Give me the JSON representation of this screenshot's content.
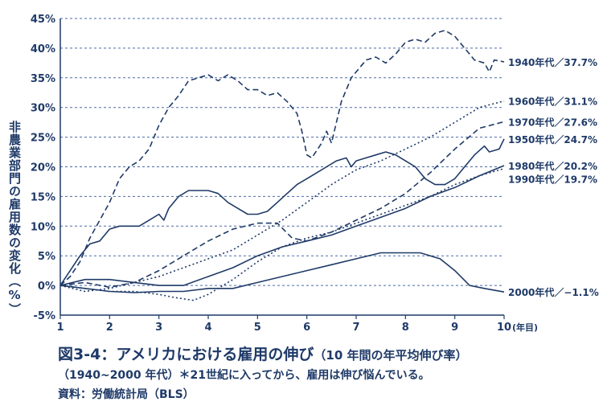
{
  "chart_data": {
    "type": "line",
    "ylabel": "非農業部門の雇用数の変化（%）",
    "xlabel_unit": "(年目)",
    "xlim": [
      1,
      10
    ],
    "ylim": [
      -5,
      45
    ],
    "x_ticks": [
      "1",
      "2",
      "3",
      "4",
      "5",
      "6",
      "7",
      "8",
      "9",
      "10"
    ],
    "y_ticks": [
      "-5%",
      "0%",
      "5%",
      "10%",
      "15%",
      "20%",
      "25%",
      "30%",
      "35%",
      "40%",
      "45%"
    ],
    "grid": "horizontal dashed",
    "colors": {
      "line": "#1f3a68",
      "grid": "#4a6aa8",
      "text": "#1f3a68"
    },
    "series": [
      {
        "name": "1940年代",
        "end_label": "1940年代／37.7%",
        "style": "dashed",
        "points": [
          [
            1,
            0
          ],
          [
            1.2,
            1.5
          ],
          [
            1.4,
            4
          ],
          [
            1.6,
            8
          ],
          [
            1.8,
            11
          ],
          [
            2,
            14
          ],
          [
            2.2,
            18
          ],
          [
            2.4,
            20
          ],
          [
            2.6,
            21
          ],
          [
            2.8,
            23
          ],
          [
            3,
            27
          ],
          [
            3.2,
            30
          ],
          [
            3.4,
            32
          ],
          [
            3.6,
            34.5
          ],
          [
            3.8,
            35
          ],
          [
            4,
            35.5
          ],
          [
            4.2,
            34.5
          ],
          [
            4.4,
            35.5
          ],
          [
            4.6,
            34.5
          ],
          [
            4.8,
            33
          ],
          [
            5,
            33
          ],
          [
            5.2,
            32
          ],
          [
            5.4,
            32.5
          ],
          [
            5.6,
            31
          ],
          [
            5.8,
            29
          ],
          [
            5.9,
            26
          ],
          [
            6,
            22
          ],
          [
            6.1,
            21.5
          ],
          [
            6.3,
            24
          ],
          [
            6.4,
            26
          ],
          [
            6.5,
            24
          ],
          [
            6.7,
            31
          ],
          [
            6.9,
            35
          ],
          [
            7.2,
            38
          ],
          [
            7.4,
            38.5
          ],
          [
            7.6,
            37.5
          ],
          [
            7.8,
            39
          ],
          [
            8,
            41
          ],
          [
            8.2,
            41.5
          ],
          [
            8.4,
            41
          ],
          [
            8.6,
            42.5
          ],
          [
            8.8,
            43
          ],
          [
            9,
            42
          ],
          [
            9.2,
            40
          ],
          [
            9.4,
            38
          ],
          [
            9.6,
            37.5
          ],
          [
            9.7,
            36
          ],
          [
            9.8,
            38
          ],
          [
            10,
            37.7
          ]
        ]
      },
      {
        "name": "1950年代",
        "end_label": "1950年代／24.7%",
        "style": "solid",
        "points": [
          [
            1,
            0
          ],
          [
            1.2,
            2.5
          ],
          [
            1.4,
            5
          ],
          [
            1.6,
            7
          ],
          [
            1.8,
            7.5
          ],
          [
            2,
            9.5
          ],
          [
            2.2,
            10
          ],
          [
            2.4,
            10
          ],
          [
            2.6,
            10
          ],
          [
            2.8,
            11
          ],
          [
            3,
            12
          ],
          [
            3.1,
            11
          ],
          [
            3.2,
            13
          ],
          [
            3.4,
            15
          ],
          [
            3.6,
            16
          ],
          [
            3.8,
            16
          ],
          [
            4,
            16
          ],
          [
            4.2,
            15.5
          ],
          [
            4.4,
            14
          ],
          [
            4.6,
            13
          ],
          [
            4.8,
            12
          ],
          [
            5,
            12
          ],
          [
            5.2,
            12.5
          ],
          [
            5.4,
            14
          ],
          [
            5.6,
            15.5
          ],
          [
            5.8,
            17
          ],
          [
            6,
            18
          ],
          [
            6.2,
            19
          ],
          [
            6.4,
            20
          ],
          [
            6.6,
            21
          ],
          [
            6.8,
            21.5
          ],
          [
            6.9,
            20
          ],
          [
            7,
            21
          ],
          [
            7.2,
            21.5
          ],
          [
            7.4,
            22
          ],
          [
            7.6,
            22.5
          ],
          [
            7.8,
            22
          ],
          [
            8,
            21
          ],
          [
            8.2,
            20
          ],
          [
            8.4,
            18
          ],
          [
            8.6,
            17
          ],
          [
            8.8,
            17
          ],
          [
            9,
            18
          ],
          [
            9.2,
            20
          ],
          [
            9.4,
            22
          ],
          [
            9.6,
            23.5
          ],
          [
            9.7,
            22.5
          ],
          [
            9.9,
            23
          ],
          [
            10,
            24.7
          ]
        ]
      },
      {
        "name": "1960年代",
        "end_label": "1960年代／31.1%",
        "style": "dotted",
        "points": [
          [
            1,
            0
          ],
          [
            1.5,
            -1
          ],
          [
            2,
            -0.5
          ],
          [
            2.5,
            0.5
          ],
          [
            3,
            1.5
          ],
          [
            3.5,
            3
          ],
          [
            4,
            4.5
          ],
          [
            4.5,
            6
          ],
          [
            5,
            8.5
          ],
          [
            5.5,
            11
          ],
          [
            6,
            14
          ],
          [
            6.5,
            17
          ],
          [
            7,
            19.5
          ],
          [
            7.5,
            21
          ],
          [
            8,
            23
          ],
          [
            8.5,
            25
          ],
          [
            9,
            27.5
          ],
          [
            9.5,
            30
          ],
          [
            10,
            31.1
          ]
        ]
      },
      {
        "name": "1970年代",
        "end_label": "1970年代／27.6%",
        "style": "dashed",
        "points": [
          [
            1,
            0
          ],
          [
            1.5,
            0.5
          ],
          [
            2,
            -0.3
          ],
          [
            2.5,
            0.5
          ],
          [
            3,
            2.5
          ],
          [
            3.5,
            5
          ],
          [
            4,
            7.5
          ],
          [
            4.5,
            9.5
          ],
          [
            5,
            10.5
          ],
          [
            5.4,
            10.5
          ],
          [
            5.7,
            8
          ],
          [
            6,
            7.5
          ],
          [
            6.5,
            9
          ],
          [
            7,
            11
          ],
          [
            7.5,
            13
          ],
          [
            8,
            15.5
          ],
          [
            8.5,
            19
          ],
          [
            9,
            23
          ],
          [
            9.5,
            26.5
          ],
          [
            10,
            27.6
          ]
        ]
      },
      {
        "name": "1980年代",
        "end_label": "1980年代／20.2%",
        "style": "solid",
        "points": [
          [
            1,
            0
          ],
          [
            1.5,
            1
          ],
          [
            2,
            1
          ],
          [
            2.5,
            0.5
          ],
          [
            3,
            0
          ],
          [
            3.5,
            0
          ],
          [
            4,
            1.5
          ],
          [
            4.5,
            3
          ],
          [
            5,
            5
          ],
          [
            5.5,
            6.5
          ],
          [
            6,
            7.5
          ],
          [
            6.5,
            8.5
          ],
          [
            7,
            10
          ],
          [
            7.5,
            11.5
          ],
          [
            8,
            13
          ],
          [
            8.5,
            15
          ],
          [
            9,
            16.5
          ],
          [
            9.5,
            18.5
          ],
          [
            10,
            20.2
          ]
        ]
      },
      {
        "name": "1990年代",
        "end_label": "1990年代／19.7%",
        "style": "dotted",
        "points": [
          [
            1,
            0
          ],
          [
            1.5,
            -0.5
          ],
          [
            2,
            -1
          ],
          [
            2.5,
            -1
          ],
          [
            3,
            -1.5
          ],
          [
            3.3,
            -2
          ],
          [
            3.7,
            -2.5
          ],
          [
            4,
            -1.5
          ],
          [
            4.5,
            1
          ],
          [
            5,
            4
          ],
          [
            5.5,
            6.5
          ],
          [
            6,
            8
          ],
          [
            6.5,
            9
          ],
          [
            7,
            10.5
          ],
          [
            7.5,
            12
          ],
          [
            8,
            13.5
          ],
          [
            8.5,
            15
          ],
          [
            9,
            17
          ],
          [
            9.5,
            18.5
          ],
          [
            10,
            19.7
          ]
        ]
      },
      {
        "name": "2000年代",
        "end_label": "2000年代／−1.1%",
        "style": "solid",
        "points": [
          [
            1,
            0
          ],
          [
            1.5,
            -0.5
          ],
          [
            2,
            -1
          ],
          [
            2.5,
            -1.2
          ],
          [
            3,
            -1
          ],
          [
            3.5,
            -1
          ],
          [
            4,
            -0.5
          ],
          [
            4.5,
            -0.5
          ],
          [
            5,
            0.5
          ],
          [
            5.5,
            1.5
          ],
          [
            6,
            2.5
          ],
          [
            6.5,
            3.5
          ],
          [
            7,
            4.5
          ],
          [
            7.5,
            5.5
          ],
          [
            8,
            5.5
          ],
          [
            8.3,
            5.5
          ],
          [
            8.7,
            4.5
          ],
          [
            9,
            2.5
          ],
          [
            9.3,
            0
          ],
          [
            9.6,
            -0.5
          ],
          [
            10,
            -1.1
          ]
        ]
      }
    ]
  },
  "caption": {
    "title_main": "図3-4：アメリカにおける雇用の伸び",
    "title_paren": "（10 年間の年平均伸び率）",
    "line2": "（1940~2000 年代）＊21世紀に入ってから、雇用は伸び悩んでいる。",
    "source": "資料：労働統計局（BLS）"
  }
}
